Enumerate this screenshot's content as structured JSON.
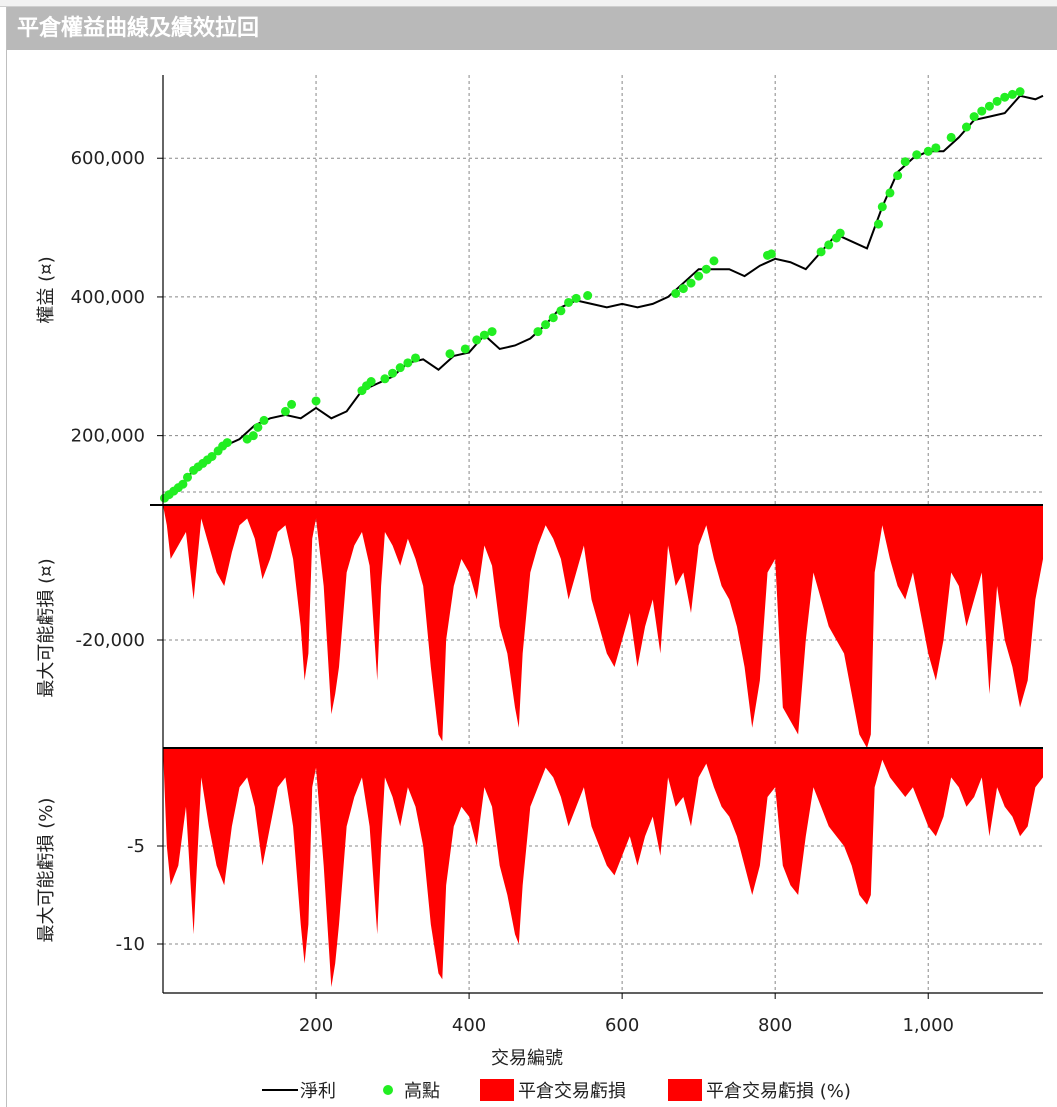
{
  "window": {
    "title": "平倉權益曲線及績效拉回"
  },
  "colors": {
    "equity_line": "#000000",
    "peak_marker": "#22ee22",
    "drawdown_fill": "#ff0000",
    "grid": "#888888",
    "title_bar": "#b9b9b9"
  },
  "chart_data": [
    {
      "type": "line",
      "panel": "equity",
      "ylabel": "權益 (¤)",
      "yticks": [
        "200,000",
        "400,000",
        "600,000"
      ],
      "ytick_values": [
        200000,
        400000,
        600000
      ],
      "ylim": [
        100000,
        720000
      ],
      "xlim": [
        0,
        1150
      ],
      "series": [
        {
          "name": "淨利",
          "kind": "line",
          "x": [
            0,
            20,
            40,
            60,
            80,
            100,
            120,
            140,
            160,
            180,
            200,
            220,
            240,
            260,
            280,
            300,
            320,
            340,
            360,
            380,
            400,
            420,
            440,
            460,
            480,
            500,
            520,
            540,
            560,
            580,
            600,
            620,
            640,
            660,
            680,
            700,
            720,
            740,
            760,
            780,
            800,
            820,
            840,
            860,
            880,
            900,
            920,
            940,
            960,
            980,
            1000,
            1020,
            1040,
            1060,
            1080,
            1100,
            1120,
            1140,
            1150
          ],
          "values": [
            110000,
            125000,
            150000,
            165000,
            185000,
            195000,
            215000,
            225000,
            230000,
            225000,
            240000,
            225000,
            235000,
            265000,
            275000,
            285000,
            305000,
            310000,
            295000,
            315000,
            320000,
            345000,
            325000,
            330000,
            340000,
            360000,
            385000,
            395000,
            390000,
            385000,
            390000,
            385000,
            390000,
            400000,
            420000,
            440000,
            440000,
            440000,
            430000,
            445000,
            455000,
            450000,
            440000,
            465000,
            490000,
            480000,
            470000,
            530000,
            580000,
            600000,
            610000,
            610000,
            630000,
            655000,
            660000,
            665000,
            690000,
            685000,
            690000
          ]
        },
        {
          "name": "高點",
          "kind": "markers",
          "x": [
            2,
            8,
            14,
            20,
            26,
            32,
            40,
            46,
            52,
            58,
            64,
            72,
            78,
            84,
            110,
            118,
            124,
            132,
            160,
            168,
            200,
            260,
            266,
            272,
            290,
            300,
            310,
            320,
            330,
            375,
            395,
            410,
            420,
            430,
            490,
            500,
            510,
            520,
            530,
            540,
            555,
            670,
            680,
            690,
            700,
            710,
            720,
            790,
            795,
            860,
            870,
            880,
            885,
            935,
            940,
            950,
            960,
            970,
            985,
            1000,
            1010,
            1030,
            1050,
            1060,
            1070,
            1080,
            1090,
            1100,
            1110,
            1120
          ],
          "values": [
            110000,
            115000,
            120000,
            125000,
            130000,
            140000,
            150000,
            155000,
            160000,
            165000,
            170000,
            178000,
            185000,
            190000,
            195000,
            200000,
            212000,
            222000,
            235000,
            245000,
            250000,
            265000,
            272000,
            278000,
            282000,
            290000,
            298000,
            305000,
            312000,
            318000,
            325000,
            338000,
            345000,
            350000,
            350000,
            360000,
            370000,
            380000,
            392000,
            398000,
            402000,
            405000,
            412000,
            420000,
            430000,
            440000,
            452000,
            460000,
            462000,
            465000,
            475000,
            485000,
            492000,
            505000,
            530000,
            550000,
            575000,
            595000,
            605000,
            610000,
            615000,
            630000,
            645000,
            660000,
            668000,
            675000,
            682000,
            688000,
            692000,
            696000
          ]
        }
      ]
    },
    {
      "type": "area",
      "panel": "drawdown_abs",
      "ylabel": "最大可能虧損 (¤)",
      "yticks": [
        "-20,000"
      ],
      "ytick_values": [
        -20000
      ],
      "ylim": [
        -36000,
        0
      ],
      "xlim": [
        0,
        1150
      ],
      "series": [
        {
          "name": "平倉交易虧損",
          "x": [
            0,
            5,
            10,
            20,
            30,
            40,
            50,
            60,
            70,
            80,
            90,
            100,
            110,
            120,
            130,
            140,
            150,
            160,
            170,
            180,
            185,
            190,
            195,
            200,
            210,
            220,
            225,
            230,
            240,
            250,
            260,
            270,
            280,
            285,
            290,
            300,
            310,
            320,
            330,
            340,
            350,
            360,
            365,
            370,
            380,
            390,
            400,
            410,
            420,
            430,
            440,
            450,
            460,
            465,
            470,
            480,
            490,
            500,
            510,
            520,
            530,
            540,
            550,
            560,
            570,
            580,
            590,
            600,
            610,
            620,
            630,
            640,
            650,
            660,
            670,
            680,
            690,
            700,
            710,
            720,
            730,
            740,
            750,
            760,
            770,
            780,
            790,
            800,
            810,
            820,
            830,
            840,
            850,
            860,
            870,
            880,
            890,
            900,
            910,
            920,
            925,
            930,
            940,
            950,
            960,
            970,
            980,
            990,
            1000,
            1010,
            1020,
            1030,
            1040,
            1050,
            1060,
            1070,
            1080,
            1090,
            1100,
            1110,
            1120,
            1130,
            1140,
            1150
          ],
          "values": [
            0,
            -3000,
            -8000,
            -6000,
            -4000,
            -14000,
            -2000,
            -6000,
            -10000,
            -12000,
            -7000,
            -3000,
            -2000,
            -5000,
            -11000,
            -8000,
            -4000,
            -3000,
            -8000,
            -18000,
            -26000,
            -22000,
            -5000,
            -2000,
            -12000,
            -31000,
            -28000,
            -24000,
            -10000,
            -6000,
            -4000,
            -9000,
            -26000,
            -12000,
            -4000,
            -6000,
            -9000,
            -5000,
            -8000,
            -12000,
            -24000,
            -34000,
            -35000,
            -20000,
            -12000,
            -8000,
            -10000,
            -14000,
            -6000,
            -9000,
            -18000,
            -22000,
            -30000,
            -33000,
            -22000,
            -10000,
            -6000,
            -3000,
            -5000,
            -8000,
            -14000,
            -10000,
            -6000,
            -14000,
            -18000,
            -22000,
            -24000,
            -20000,
            -16000,
            -24000,
            -18000,
            -14000,
            -22000,
            -6000,
            -12000,
            -10000,
            -16000,
            -6000,
            -3000,
            -8000,
            -12000,
            -14000,
            -18000,
            -24000,
            -33000,
            -26000,
            -10000,
            -8000,
            -30000,
            -32000,
            -34000,
            -20000,
            -10000,
            -14000,
            -18000,
            -20000,
            -22000,
            -28000,
            -34000,
            -36000,
            -34000,
            -10000,
            -3000,
            -8000,
            -12000,
            -14000,
            -10000,
            -16000,
            -22000,
            -26000,
            -20000,
            -10000,
            -12000,
            -18000,
            -14000,
            -10000,
            -28000,
            -12000,
            -20000,
            -24000,
            -30000,
            -26000,
            -14000,
            -8000
          ]
        }
      ]
    },
    {
      "type": "area",
      "panel": "drawdown_pct",
      "ylabel": "最大可能虧損 (%)",
      "yticks": [
        "-5",
        "-10"
      ],
      "ytick_values": [
        -5,
        -10
      ],
      "ylim": [
        -12.5,
        0
      ],
      "xlim": [
        0,
        1150
      ],
      "xlabel": "交易編號",
      "xticks": [
        "200",
        "400",
        "600",
        "800",
        "1,000"
      ],
      "xtick_values": [
        200,
        400,
        600,
        800,
        1000
      ],
      "series": [
        {
          "name": "平倉交易虧損 (%)",
          "x": [
            0,
            5,
            10,
            20,
            30,
            40,
            50,
            60,
            70,
            80,
            90,
            100,
            110,
            120,
            130,
            140,
            150,
            160,
            170,
            180,
            185,
            190,
            195,
            200,
            210,
            220,
            225,
            230,
            240,
            250,
            260,
            270,
            280,
            285,
            290,
            300,
            310,
            320,
            330,
            340,
            350,
            360,
            365,
            370,
            380,
            390,
            400,
            410,
            420,
            430,
            440,
            450,
            460,
            465,
            470,
            480,
            490,
            500,
            510,
            520,
            530,
            540,
            550,
            560,
            570,
            580,
            590,
            600,
            610,
            620,
            630,
            640,
            650,
            660,
            670,
            680,
            690,
            700,
            710,
            720,
            730,
            740,
            750,
            760,
            770,
            780,
            790,
            800,
            810,
            820,
            830,
            840,
            850,
            860,
            870,
            880,
            890,
            900,
            910,
            920,
            925,
            930,
            940,
            950,
            960,
            970,
            980,
            990,
            1000,
            1010,
            1020,
            1030,
            1040,
            1050,
            1060,
            1070,
            1080,
            1090,
            1100,
            1110,
            1120,
            1130,
            1140,
            1150
          ],
          "values": [
            0,
            -5,
            -7,
            -6,
            -3,
            -9.5,
            -1.5,
            -4,
            -6,
            -7,
            -4,
            -2,
            -1.5,
            -3,
            -6,
            -4,
            -2,
            -1.5,
            -4,
            -9,
            -11,
            -9,
            -2,
            -1,
            -6,
            -12.2,
            -11,
            -9,
            -4,
            -2.5,
            -1.5,
            -4,
            -9.5,
            -5,
            -1.5,
            -2.5,
            -4,
            -2,
            -3,
            -5,
            -9,
            -11.5,
            -11.8,
            -7,
            -4,
            -3,
            -3.5,
            -5,
            -2,
            -3,
            -6,
            -7.5,
            -9.5,
            -10,
            -7,
            -3,
            -2,
            -1,
            -1.5,
            -2.5,
            -4,
            -3,
            -2,
            -4,
            -5,
            -6,
            -6.5,
            -5.5,
            -4.5,
            -6,
            -4.5,
            -3.5,
            -5.5,
            -1.5,
            -3,
            -2.5,
            -4,
            -1.5,
            -0.8,
            -2,
            -3,
            -3.5,
            -4.5,
            -6,
            -7.5,
            -6,
            -2.5,
            -2,
            -6,
            -7,
            -7.5,
            -4.5,
            -2,
            -3,
            -4,
            -4.5,
            -5,
            -6,
            -7.5,
            -8,
            -7.5,
            -2,
            -0.6,
            -1.5,
            -2,
            -2.5,
            -2,
            -3,
            -4,
            -4.5,
            -3.5,
            -1.5,
            -2,
            -3,
            -2.5,
            -1.5,
            -4.5,
            -2,
            -3,
            -3.5,
            -4.5,
            -4,
            -2,
            -1.5
          ]
        }
      ]
    }
  ],
  "legend": {
    "items": [
      {
        "label": "淨利",
        "symbol": "line"
      },
      {
        "label": "高點",
        "symbol": "dot"
      },
      {
        "label": "平倉交易虧損",
        "symbol": "box"
      },
      {
        "label": "平倉交易虧損 (%)",
        "symbol": "box"
      }
    ]
  }
}
